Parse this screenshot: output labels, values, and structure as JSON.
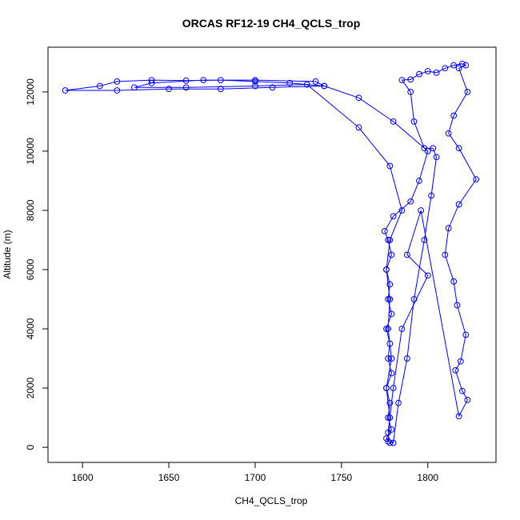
{
  "chart_data": {
    "type": "line",
    "title": "ORCAS RF12-19 CH4_QCLS_trop",
    "x_label": "CH4_QCLS_trop",
    "y_label": "Altitude (m)",
    "color": "#0000ff",
    "markers": true,
    "xlim": [
      1580,
      1839.5
    ],
    "ylim": [
      -510,
      13510
    ],
    "xticks": [
      1600,
      1650,
      1700,
      1750,
      1800
    ],
    "yticks": [
      0,
      2000,
      4000,
      6000,
      8000,
      10000,
      12000
    ],
    "x": [
      1778,
      1776,
      1779,
      1777,
      1778,
      1776,
      1779,
      1777,
      1778,
      1776,
      1779,
      1777,
      1778,
      1776,
      1779,
      1777,
      1775,
      1780,
      1790,
      1795,
      1800,
      1780,
      1760,
      1740,
      1720,
      1700,
      1680,
      1660,
      1640,
      1620,
      1610,
      1590,
      1620,
      1650,
      1680,
      1710,
      1740,
      1735,
      1700,
      1670,
      1640,
      1630,
      1660,
      1700,
      1730,
      1760,
      1778,
      1785,
      1778,
      1776,
      1778,
      1777,
      1779,
      1776,
      1778,
      1777,
      1780,
      1783,
      1788,
      1792,
      1798,
      1802,
      1805,
      1803,
      1798,
      1792,
      1790,
      1785,
      1790,
      1795,
      1800,
      1805,
      1810,
      1815,
      1820,
      1822,
      1818,
      1823,
      1815,
      1812,
      1818,
      1828,
      1818,
      1812,
      1810,
      1815,
      1817,
      1822,
      1819,
      1816,
      1820,
      1823,
      1818,
      1796,
      1788,
      1800,
      1785,
      1780,
      1777
    ],
    "values": [
      150,
      300,
      600,
      1000,
      1500,
      2000,
      2500,
      3000,
      3500,
      4000,
      4500,
      5000,
      5500,
      6000,
      6500,
      7000,
      7300,
      7800,
      8300,
      9000,
      10000,
      11000,
      11800,
      12200,
      12300,
      12350,
      12400,
      12380,
      12400,
      12350,
      12200,
      12050,
      12050,
      12100,
      12100,
      12150,
      12200,
      12350,
      12400,
      12400,
      12300,
      12150,
      12150,
      12200,
      12250,
      10800,
      9500,
      8000,
      7000,
      6000,
      5000,
      4000,
      3000,
      2000,
      1000,
      200,
      150,
      1500,
      3000,
      5000,
      7000,
      8500,
      9800,
      10100,
      10100,
      11000,
      12000,
      12400,
      12420,
      12600,
      12700,
      12650,
      12800,
      12900,
      12950,
      12900,
      12800,
      12000,
      11200,
      10600,
      10100,
      9050,
      8200,
      7400,
      6500,
      5600,
      4800,
      3800,
      2900,
      2600,
      1900,
      1600,
      1050,
      8000,
      6500,
      5800,
      4000,
      2000,
      500
    ]
  }
}
